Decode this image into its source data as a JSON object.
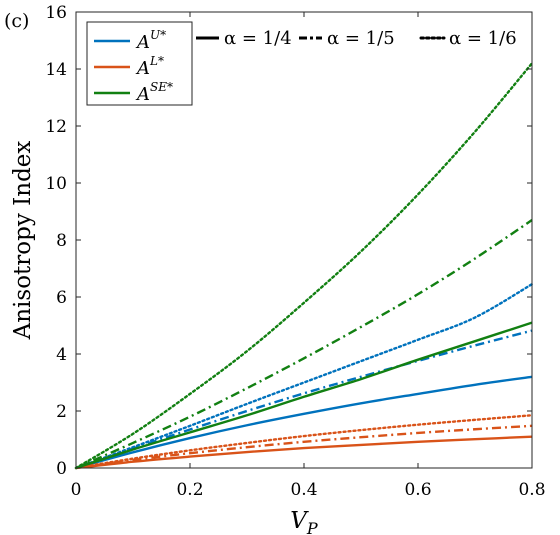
{
  "panel_label": "(c)",
  "chart_data": {
    "type": "line",
    "title": "",
    "xlabel": "V_P",
    "ylabel": "Anisotropy Index",
    "xlim": [
      0,
      0.8
    ],
    "ylim": [
      0,
      16
    ],
    "xticks": [
      0,
      0.2,
      0.4,
      0.6,
      0.8
    ],
    "xtick_labels": [
      "0",
      "0.2",
      "0.4",
      "0.6",
      "0.8"
    ],
    "yticks": [
      0,
      2,
      4,
      6,
      8,
      10,
      12,
      14,
      16
    ],
    "ytick_labels": [
      "0",
      "2",
      "4",
      "6",
      "8",
      "10",
      "12",
      "14",
      "16"
    ],
    "grid": false,
    "legend_placement": "top-left",
    "colors": {
      "U": "#0072BD",
      "L": "#D95319",
      "SE": "#128012"
    },
    "legend": {
      "series": [
        {
          "key": "U",
          "label": "A^{U*}",
          "base": "A",
          "sup": "U*",
          "color": "#0072BD"
        },
        {
          "key": "L",
          "label": "A^{L*}",
          "base": "A",
          "sup": "L*",
          "color": "#D95319"
        },
        {
          "key": "SE",
          "label": "A^{SE*}",
          "base": "A",
          "sup": "SE*",
          "color": "#128012"
        }
      ],
      "styles": [
        {
          "label": "α = 1/4",
          "dash": "solid"
        },
        {
          "label": "α = 1/5",
          "dash": "dashdot"
        },
        {
          "label": "α = 1/6",
          "dash": "dotted"
        }
      ]
    },
    "x": [
      0,
      0.1,
      0.2,
      0.3,
      0.4,
      0.5,
      0.6,
      0.7,
      0.8
    ],
    "series": [
      {
        "key": "U",
        "alpha": "1/4",
        "dash": "solid",
        "values": [
          0,
          0.55,
          1.05,
          1.5,
          1.9,
          2.27,
          2.6,
          2.92,
          3.2
        ]
      },
      {
        "key": "U",
        "alpha": "1/5",
        "dash": "dashdot",
        "values": [
          0,
          0.68,
          1.35,
          2.0,
          2.62,
          3.2,
          3.76,
          4.3,
          4.82
        ]
      },
      {
        "key": "U",
        "alpha": "1/6",
        "dash": "dotted",
        "values": [
          0,
          0.73,
          1.48,
          2.25,
          3.0,
          3.75,
          4.5,
          5.28,
          6.45
        ]
      },
      {
        "key": "L",
        "alpha": "1/4",
        "dash": "solid",
        "values": [
          0,
          0.22,
          0.4,
          0.56,
          0.7,
          0.81,
          0.92,
          1.01,
          1.1
        ]
      },
      {
        "key": "L",
        "alpha": "1/5",
        "dash": "dashdot",
        "values": [
          0,
          0.28,
          0.52,
          0.73,
          0.92,
          1.08,
          1.23,
          1.36,
          1.48
        ]
      },
      {
        "key": "L",
        "alpha": "1/6",
        "dash": "dotted",
        "values": [
          0,
          0.33,
          0.62,
          0.88,
          1.12,
          1.33,
          1.52,
          1.69,
          1.85
        ]
      },
      {
        "key": "SE",
        "alpha": "1/4",
        "dash": "solid",
        "values": [
          0,
          0.65,
          1.25,
          1.85,
          2.5,
          3.12,
          3.8,
          4.45,
          5.1
        ]
      },
      {
        "key": "SE",
        "alpha": "1/5",
        "dash": "dashdot",
        "values": [
          0,
          0.88,
          1.8,
          2.8,
          3.85,
          4.95,
          6.1,
          7.35,
          8.7
        ]
      },
      {
        "key": "SE",
        "alpha": "1/6",
        "dash": "dotted",
        "values": [
          0,
          1.2,
          2.6,
          4.1,
          5.8,
          7.6,
          9.6,
          11.8,
          14.2
        ]
      }
    ]
  }
}
